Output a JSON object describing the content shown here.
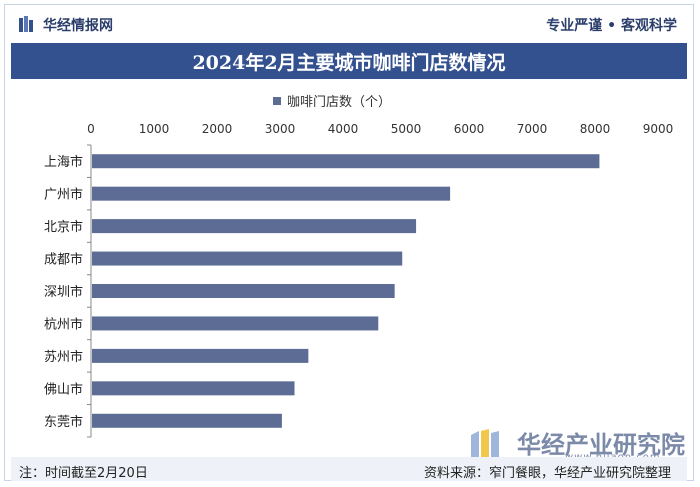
{
  "header": {
    "brand": "华经情报网",
    "slogan": "专业严谨 • 客观科学"
  },
  "title": "2024年2月主要城市咖啡门店数情况",
  "legend": {
    "label": "咖啡门店数（个）"
  },
  "colors": {
    "bar": "#5c6c95",
    "title_bg": "#33508f",
    "accent": "#2b3e6b"
  },
  "chart_data": {
    "type": "bar",
    "orientation": "horizontal",
    "categories": [
      "上海市",
      "广州市",
      "北京市",
      "成都市",
      "深圳市",
      "杭州市",
      "苏州市",
      "佛山市",
      "东莞市"
    ],
    "series": [
      {
        "name": "咖啡门店数（个）",
        "values": [
          8070,
          5700,
          5160,
          4940,
          4820,
          4560,
          3450,
          3230,
          3030
        ]
      }
    ],
    "xlim": [
      0,
      9000
    ],
    "xticks": [
      0,
      1000,
      2000,
      3000,
      4000,
      5000,
      6000,
      7000,
      8000,
      9000
    ],
    "axis_position": "top",
    "legend_position": "top-center",
    "grid": false
  },
  "footer": {
    "note": "注：时间截至2月20日",
    "source": "资料来源：窄门餐眼，华经产业研究院整理"
  },
  "watermark": {
    "brand": "华经产业研究院",
    "url": "www.huaon.com"
  }
}
